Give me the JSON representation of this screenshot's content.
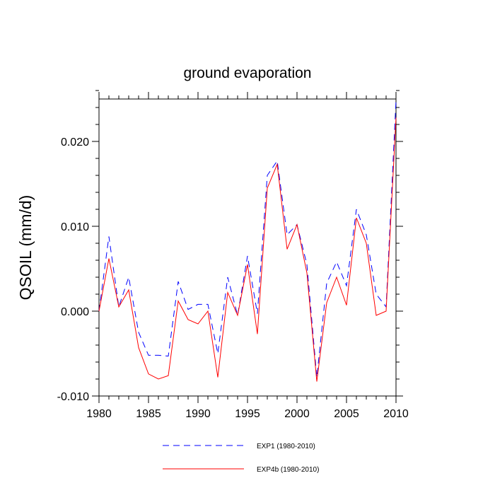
{
  "chart_data": {
    "type": "line",
    "title": "ground evaporation",
    "xlabel": "",
    "ylabel": "QSOIL  (mm/d)",
    "xlim": [
      1980,
      2010
    ],
    "ylim": [
      -0.01,
      0.025
    ],
    "xticks": [
      1980,
      1985,
      1990,
      1995,
      2000,
      2005,
      2010
    ],
    "xtick_labels": [
      "1980",
      "1985",
      "1990",
      "1995",
      "2000",
      "2005",
      "2010"
    ],
    "yticks": [
      -0.01,
      0.0,
      0.01,
      0.02
    ],
    "ytick_labels": [
      "-0.010",
      "0.000",
      "0.010",
      "0.020"
    ],
    "grid": false,
    "legend_position": "bottom",
    "x": [
      1980,
      1981,
      1982,
      1983,
      1984,
      1985,
      1986,
      1987,
      1988,
      1989,
      1990,
      1991,
      1992,
      1993,
      1994,
      1995,
      1996,
      1997,
      1998,
      1999,
      2000,
      2001,
      2002,
      2003,
      2004,
      2005,
      2006,
      2007,
      2008,
      2009,
      2010
    ],
    "series": [
      {
        "name": "EXP1 (1980-2010)",
        "color": "#0000ff",
        "style": "dashed",
        "values": [
          0.0,
          0.0088,
          0.0005,
          0.004,
          -0.0025,
          -0.0052,
          -0.0052,
          -0.0053,
          0.0035,
          0.0002,
          0.0008,
          0.0008,
          -0.005,
          0.004,
          -0.0005,
          0.0065,
          -0.0003,
          0.016,
          0.0177,
          0.009,
          0.0102,
          0.0055,
          -0.0078,
          0.0033,
          0.0058,
          0.003,
          0.012,
          0.009,
          0.002,
          0.0005,
          0.0248
        ]
      },
      {
        "name": "EXP4b (1980-2010)",
        "color": "#ff0000",
        "style": "solid",
        "values": [
          0.0,
          0.0062,
          0.0005,
          0.0025,
          -0.0043,
          -0.0074,
          -0.008,
          -0.0076,
          0.0012,
          -0.001,
          -0.0015,
          0.0,
          -0.0078,
          0.0022,
          -0.0005,
          0.0055,
          -0.0027,
          0.0145,
          0.0173,
          0.0073,
          0.0102,
          0.0045,
          -0.0083,
          0.001,
          0.004,
          0.0007,
          0.011,
          0.008,
          -0.0005,
          0.0,
          0.0228
        ]
      }
    ]
  }
}
